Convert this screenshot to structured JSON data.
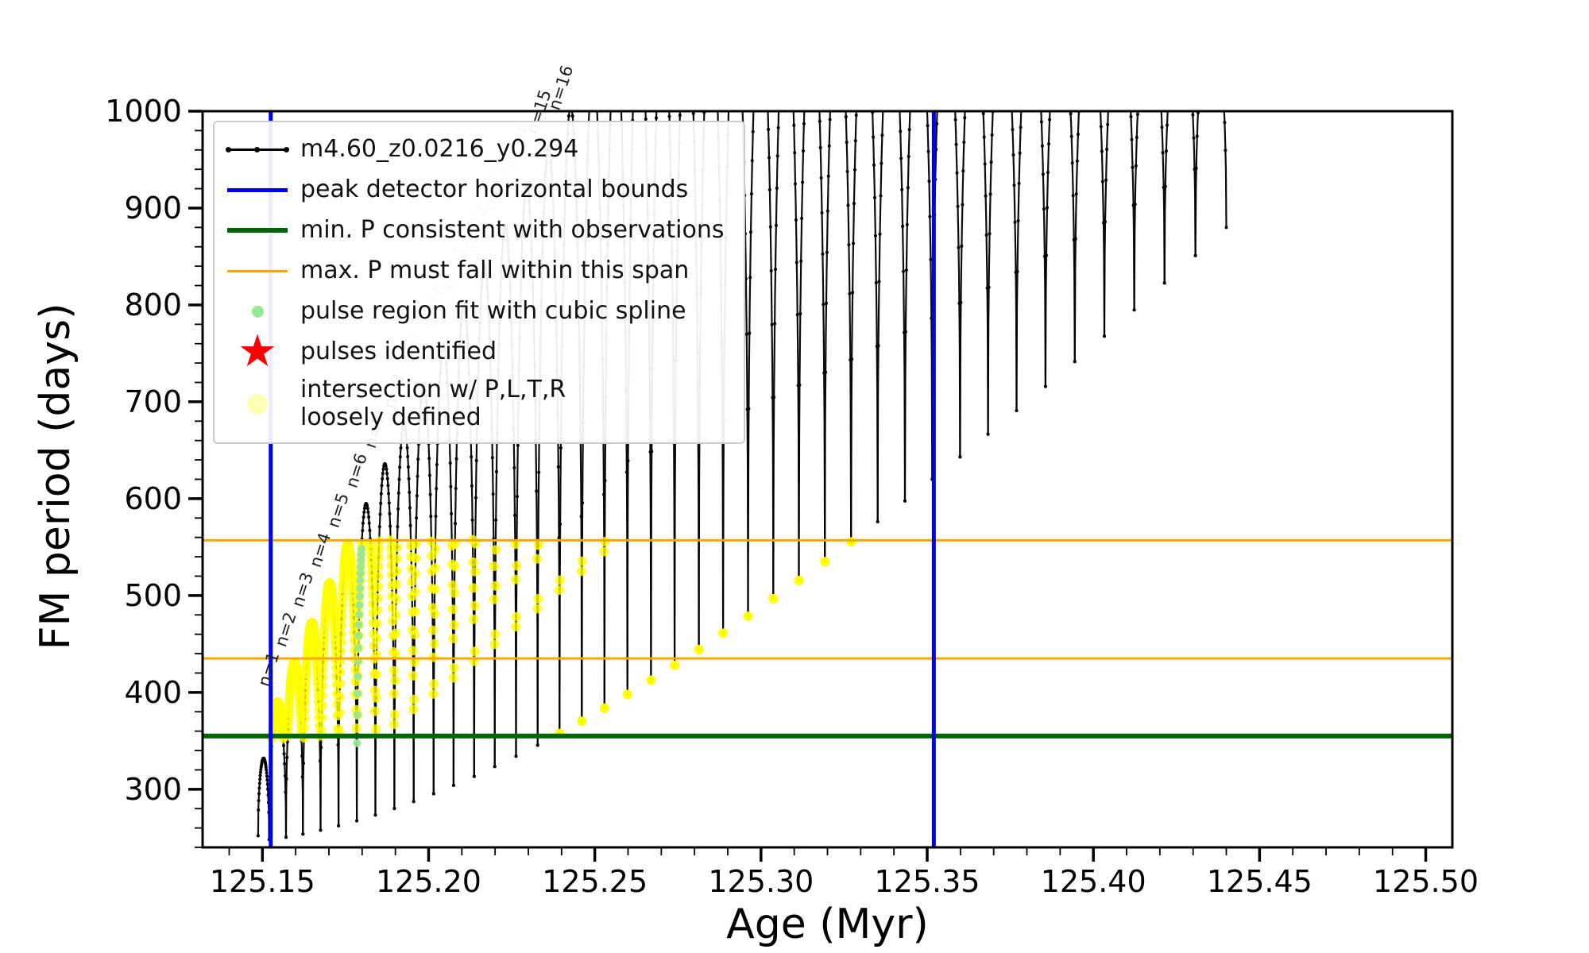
{
  "window": {
    "background": "#ffffff"
  },
  "colors": {
    "track": "#000000",
    "peak_bounds": "#0000ee",
    "min_p_line": "#006400",
    "max_p_span": "#ffa500",
    "spline_dots": "#98e698",
    "pulse_star": "#ff0000",
    "intersection_dots": "#ffff00",
    "intersection_legend": "#ffffb3",
    "axis": "#000000",
    "label_dark": "#222222",
    "label_gray": "#aaaaaa"
  },
  "legend": {
    "items": [
      {
        "label": "m4.60_z0.0216_y0.294",
        "marker": "line-dots"
      },
      {
        "label": "peak detector horizontal bounds",
        "marker": "line-blue"
      },
      {
        "label": "min. P consistent with observations",
        "marker": "line-green"
      },
      {
        "label": "max. P must fall within this span",
        "marker": "line-orange"
      },
      {
        "label": "pulse region fit with cubic spline",
        "marker": "dot-green"
      },
      {
        "label": "pulses identified",
        "marker": "star-red"
      },
      {
        "label": "intersection w/ P,L,T,R",
        "label2": "loosely defined",
        "marker": "dot-yellow"
      }
    ]
  },
  "chart_data": {
    "type": "line",
    "title": "",
    "xlabel": "Age (Myr)",
    "ylabel": "FM period (days)",
    "series_name": "m4.60_z0.0216_y0.294",
    "xlim": [
      125.132,
      125.508
    ],
    "ylim": [
      240,
      1000
    ],
    "xticks": [
      125.15,
      125.2,
      125.25,
      125.3,
      125.35,
      125.4,
      125.45,
      125.5
    ],
    "xtick_labels": [
      "125.15",
      "125.20",
      "125.25",
      "125.30",
      "125.35",
      "125.40",
      "125.45",
      "125.50"
    ],
    "x_minor_step": 0.01,
    "yticks": [
      300,
      400,
      500,
      600,
      700,
      800,
      900,
      1000
    ],
    "y_minor_step": 20,
    "vlines": {
      "x": [
        125.1525,
        125.352
      ]
    },
    "hlines": {
      "green": [
        355
      ],
      "orange": [
        435,
        557
      ]
    },
    "intersection_band": {
      "age_range": [
        125.152,
        125.3525
      ],
      "period_range": [
        352,
        558
      ]
    },
    "spline_region": {
      "arc_index": 6,
      "t_max": 0.45,
      "period_range": [
        278,
        548
      ]
    },
    "pulse_arcs": {
      "x0": [
        125.1487,
        125.152,
        125.1571,
        125.1622,
        125.1675,
        125.1729,
        125.1784,
        125.184,
        125.1897,
        125.1955,
        125.2015,
        125.2075,
        125.2137,
        125.2199,
        125.2263,
        125.2328,
        125.2394,
        125.2461,
        125.2529,
        125.2598,
        125.2669,
        125.274,
        125.2813,
        125.2886,
        125.2961,
        125.3037,
        125.3114,
        125.3192,
        125.3271,
        125.3351,
        125.3433,
        125.3515,
        125.3599,
        125.3683,
        125.3769,
        125.3856,
        125.3944,
        125.4033,
        125.4123,
        125.4214,
        125.4307,
        125.44
      ],
      "base": [
        252,
        248,
        250.5,
        253.8,
        257.7,
        262.2,
        267.5,
        273.4,
        280.1,
        287.4,
        295.3,
        304,
        313.3,
        323.4,
        334.1,
        345.4,
        357.5,
        370.2,
        383.7,
        397.8,
        412.5,
        428,
        444.1,
        461,
        478.5,
        496.6,
        515.5,
        535,
        555.3,
        576.2,
        597.7,
        620,
        643,
        666.6,
        690.9,
        715.8,
        741.5,
        767.8,
        794.9,
        822.6,
        850.9,
        880
      ],
      "peak": [
        332,
        390,
        431,
        472,
        513,
        554,
        595,
        636,
        677,
        718,
        759,
        800,
        841,
        882,
        923,
        964,
        1005,
        1046,
        1087,
        1120,
        1120,
        1120,
        1120,
        1120,
        1120,
        1120,
        1120,
        1120,
        1120,
        1120,
        1120,
        1120,
        1120,
        1120,
        1120,
        1120,
        1120,
        1120,
        1120,
        1120,
        1120
      ]
    },
    "pulse_labels": [
      {
        "text": "n=1",
        "age": 125.1528,
        "period": 400,
        "shade": "dark"
      },
      {
        "text": "n=2",
        "age": 125.1579,
        "period": 441,
        "shade": "dark"
      },
      {
        "text": "n=3",
        "age": 125.163,
        "period": 482,
        "shade": "dark"
      },
      {
        "text": "n=4",
        "age": 125.1683,
        "period": 523,
        "shade": "dark"
      },
      {
        "text": "n=5",
        "age": 125.1737,
        "period": 564,
        "shade": "dark"
      },
      {
        "text": "n=6",
        "age": 125.1792,
        "period": 605,
        "shade": "dark"
      },
      {
        "text": "n=7",
        "age": 125.1848,
        "period": 646,
        "shade": "dark"
      },
      {
        "text": "n=8",
        "age": 125.1905,
        "period": 687,
        "shade": "dark"
      },
      {
        "text": "n=9",
        "age": 125.1963,
        "period": 728,
        "shade": "gray"
      },
      {
        "text": "n=10",
        "age": 125.2023,
        "period": 769,
        "shade": "gray"
      },
      {
        "text": "n=11",
        "age": 125.2083,
        "period": 810,
        "shade": "gray"
      },
      {
        "text": "n=12",
        "age": 125.2145,
        "period": 851,
        "shade": "gray"
      },
      {
        "text": "n=13",
        "age": 125.2207,
        "period": 892,
        "shade": "gray"
      },
      {
        "text": "n=14",
        "age": 125.2271,
        "period": 933,
        "shade": "gray"
      },
      {
        "text": "n=15",
        "age": 125.2336,
        "period": 970,
        "shade": "dark"
      },
      {
        "text": "n=16",
        "age": 125.2402,
        "period": 995,
        "shade": "dark"
      }
    ]
  }
}
